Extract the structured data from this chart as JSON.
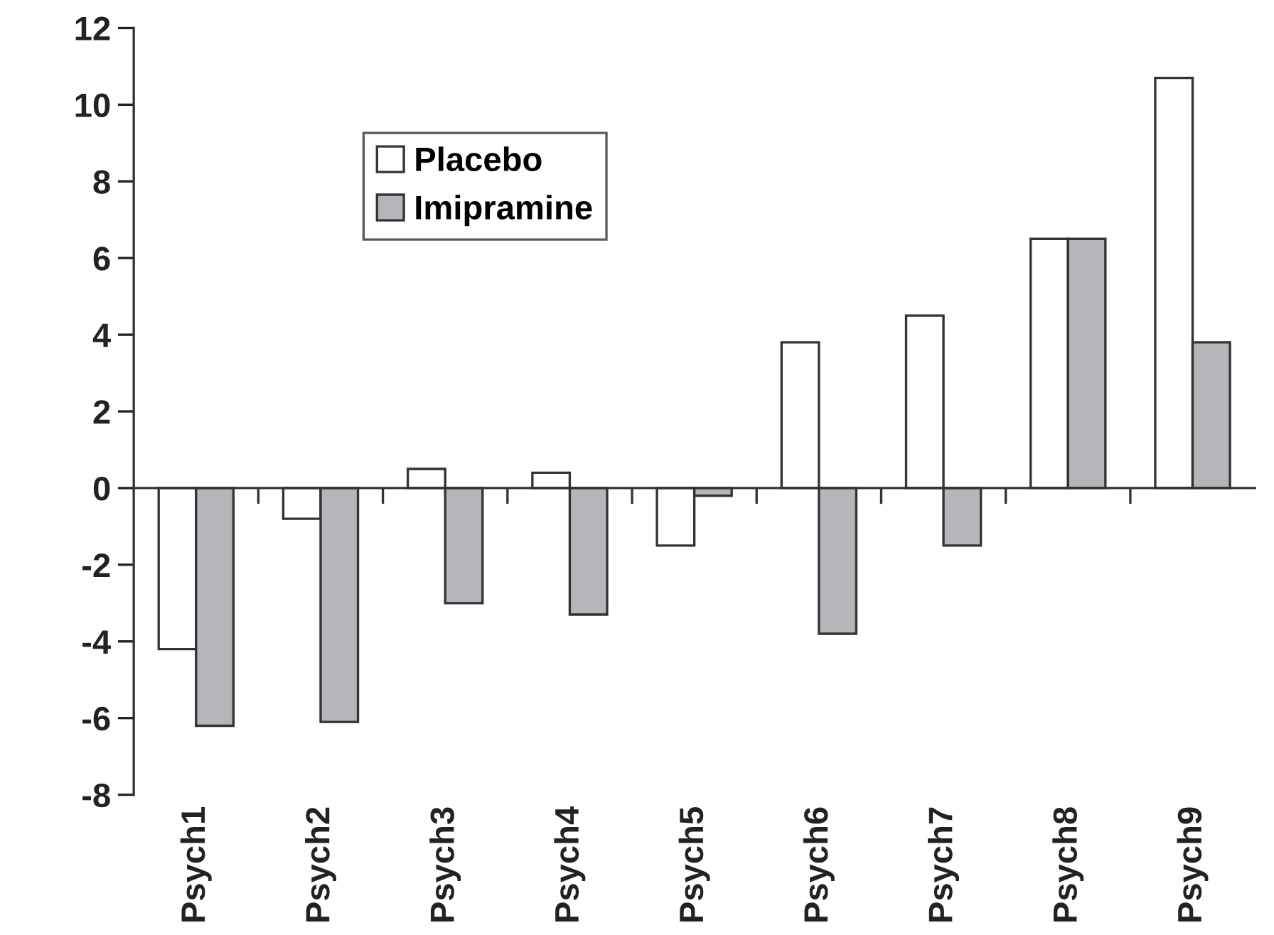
{
  "chart_data": {
    "type": "bar",
    "categories": [
      "Psych1",
      "Psych2",
      "Psych3",
      "Psych4",
      "Psych5",
      "Psych6",
      "Psych7",
      "Psych8",
      "Psych9"
    ],
    "series": [
      {
        "name": "Placebo",
        "color": "#ffffff",
        "values": [
          -4.2,
          -0.8,
          0.5,
          0.4,
          -1.5,
          3.8,
          4.5,
          6.5,
          10.7
        ]
      },
      {
        "name": "Imipramine",
        "color": "#b4b6b9",
        "values": [
          -6.2,
          -6.1,
          -3.0,
          -3.3,
          -0.2,
          -3.8,
          -1.5,
          6.5,
          3.8
        ]
      }
    ],
    "ylim": [
      -8,
      12
    ],
    "yticks": [
      -8,
      -6,
      -4,
      -2,
      0,
      2,
      4,
      6,
      8,
      10,
      12
    ],
    "legend": "top left"
  }
}
